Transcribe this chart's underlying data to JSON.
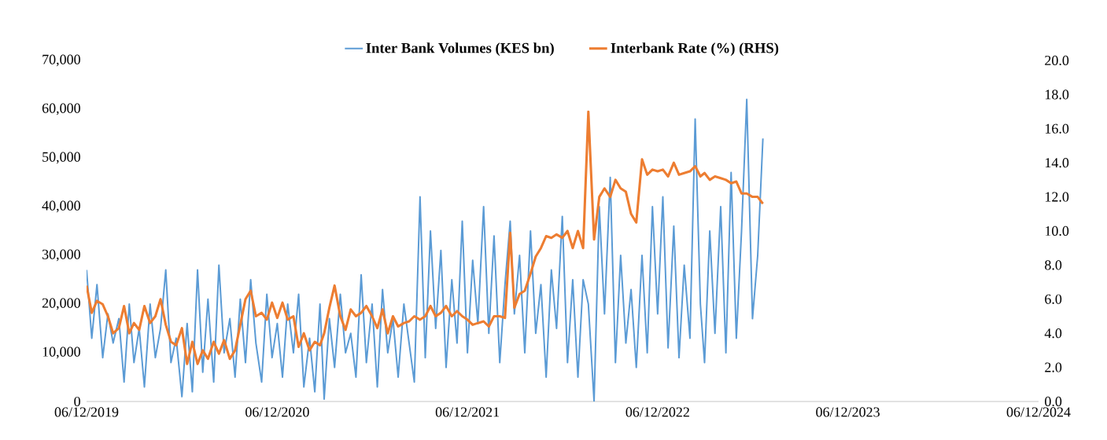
{
  "chart_data": {
    "type": "line",
    "x": [
      "2019-12-06",
      "2019-12-16",
      "2019-12-26",
      "2020-01-06",
      "2020-01-16",
      "2020-01-26",
      "2020-02-06",
      "2020-02-16",
      "2020-02-26",
      "2020-03-06",
      "2020-03-16",
      "2020-03-26",
      "2020-04-06",
      "2020-04-16",
      "2020-04-26",
      "2020-05-06",
      "2020-05-16",
      "2020-05-26",
      "2020-06-06",
      "2020-06-16",
      "2020-06-26",
      "2020-07-06",
      "2020-07-16",
      "2020-07-26",
      "2020-08-06",
      "2020-08-16",
      "2020-08-26",
      "2020-09-06",
      "2020-09-16",
      "2020-09-26",
      "2020-10-06",
      "2020-10-16",
      "2020-10-26",
      "2020-11-06",
      "2020-11-16",
      "2020-11-26",
      "2020-12-06",
      "2020-12-16",
      "2020-12-26",
      "2021-01-06",
      "2021-01-16",
      "2021-01-26",
      "2021-02-06",
      "2021-02-16",
      "2021-02-26",
      "2021-03-06",
      "2021-03-16",
      "2021-03-26",
      "2021-04-06",
      "2021-04-16",
      "2021-04-26",
      "2021-05-06",
      "2021-05-16",
      "2021-05-26",
      "2021-06-06",
      "2021-06-16",
      "2021-06-26",
      "2021-07-06",
      "2021-07-16",
      "2021-07-26",
      "2021-08-06",
      "2021-08-16",
      "2021-08-26",
      "2021-09-06",
      "2021-09-16",
      "2021-09-26",
      "2021-10-06",
      "2021-10-16",
      "2021-10-26",
      "2021-11-06",
      "2021-11-16",
      "2021-11-26",
      "2021-12-06",
      "2021-12-16",
      "2021-12-26",
      "2022-01-06",
      "2022-01-16",
      "2022-01-26",
      "2022-02-06",
      "2022-02-16",
      "2022-02-26",
      "2022-03-06",
      "2022-03-16",
      "2022-03-26",
      "2022-04-06",
      "2022-04-16",
      "2022-04-26",
      "2022-05-06",
      "2022-05-16",
      "2022-05-26",
      "2022-06-06",
      "2022-06-16",
      "2022-06-26",
      "2022-07-06",
      "2022-07-16",
      "2022-07-26",
      "2022-08-06",
      "2022-08-16",
      "2022-08-26",
      "2022-09-06",
      "2022-09-16",
      "2022-09-26",
      "2022-10-06",
      "2022-10-16",
      "2022-10-26",
      "2022-11-06",
      "2022-11-16",
      "2022-11-26",
      "2022-12-06",
      "2022-12-16",
      "2022-12-26",
      "2023-01-06",
      "2023-01-16",
      "2023-01-26",
      "2023-02-06",
      "2023-02-16",
      "2023-02-26",
      "2023-03-06",
      "2023-03-16",
      "2023-03-26",
      "2023-04-06",
      "2023-04-16",
      "2023-04-26",
      "2023-05-06",
      "2023-05-16",
      "2023-05-26",
      "2023-06-06",
      "2023-06-16",
      "2023-06-26"
    ],
    "series": [
      {
        "name": "Inter Bank Volumes (KES bn)",
        "color": "#5b9bd5",
        "values": [
          27000,
          13000,
          24000,
          9000,
          18000,
          12000,
          17000,
          4000,
          20000,
          8000,
          15000,
          3000,
          20000,
          9000,
          15000,
          27000,
          8000,
          13000,
          1000,
          16000,
          2000,
          27000,
          6000,
          21000,
          4000,
          28000,
          10000,
          17000,
          5000,
          21000,
          8000,
          25000,
          12000,
          4000,
          22000,
          9000,
          16000,
          5000,
          20000,
          10000,
          22000,
          3000,
          13000,
          2000,
          20000,
          500,
          17000,
          7000,
          22000,
          10000,
          14000,
          5000,
          26000,
          8000,
          20000,
          3000,
          23000,
          10000,
          17000,
          5000,
          20000,
          12000,
          4000,
          42000,
          9000,
          35000,
          15000,
          31000,
          7000,
          25000,
          12000,
          37000,
          10000,
          29000,
          16000,
          40000,
          14000,
          34000,
          8000,
          24000,
          37000,
          18000,
          30000,
          10000,
          35000,
          14000,
          24000,
          5000,
          27000,
          15000,
          38000,
          8000,
          25000,
          5000,
          25000,
          20000,
          0,
          40000,
          18000,
          46000,
          8000,
          30000,
          12000,
          23000,
          7000,
          30000,
          10000,
          40000,
          18000,
          42000,
          11000,
          36000,
          9000,
          28000,
          13000,
          58000,
          20000,
          8000,
          35000,
          14000,
          40000,
          10000,
          47000,
          13000,
          35000,
          62000,
          17000,
          30000,
          54000
        ]
      },
      {
        "name": "Interbank Rate (%) (RHS)",
        "color": "#ed7d31",
        "axis": "y2",
        "values": [
          6.8,
          5.2,
          5.9,
          5.7,
          5.0,
          4.0,
          4.3,
          5.6,
          4.0,
          4.6,
          4.2,
          5.6,
          4.6,
          5.0,
          6.0,
          4.5,
          3.5,
          3.3,
          4.3,
          2.2,
          3.5,
          2.2,
          3.0,
          2.5,
          3.5,
          2.8,
          3.6,
          2.5,
          3.0,
          4.5,
          6.0,
          6.5,
          5.0,
          5.2,
          4.8,
          5.8,
          4.9,
          5.8,
          4.8,
          5.0,
          3.2,
          4.0,
          3.0,
          3.5,
          3.3,
          4.0,
          5.5,
          6.8,
          5.0,
          4.2,
          5.4,
          5.0,
          5.2,
          5.6,
          5.0,
          4.3,
          5.4,
          4.0,
          5.0,
          4.4,
          4.6,
          4.7,
          5.0,
          4.8,
          5.0,
          5.6,
          5.0,
          5.2,
          5.6,
          5.0,
          5.3,
          5.0,
          4.8,
          4.5,
          4.6,
          4.7,
          4.4,
          5.0,
          5.0,
          4.9,
          9.9,
          5.5,
          6.3,
          6.5,
          7.5,
          8.5,
          9.0,
          9.7,
          9.6,
          9.8,
          9.6,
          10.0,
          9.0,
          10.0,
          9.0,
          17.0,
          9.5,
          12.0,
          12.5,
          12.0,
          13.0,
          12.5,
          12.3,
          11.0,
          10.5,
          14.2,
          13.3,
          13.6,
          13.5,
          13.6,
          13.2,
          14.0,
          13.3,
          13.4,
          13.5,
          13.8,
          13.2,
          13.4,
          13.0,
          13.2,
          13.1,
          13.0,
          12.8,
          12.9,
          12.2,
          12.2,
          12.0,
          12.0,
          11.6
        ]
      }
    ],
    "xlim": [
      "2019-12-06",
      "2024-12-06"
    ],
    "xticks": [
      {
        "value": "2019-12-06",
        "label": "06/12/2019"
      },
      {
        "value": "2020-12-06",
        "label": "06/12/2020"
      },
      {
        "value": "2021-12-06",
        "label": "06/12/2021"
      },
      {
        "value": "2022-12-06",
        "label": "06/12/2022"
      },
      {
        "value": "2023-12-06",
        "label": "06/12/2023"
      },
      {
        "value": "2024-12-06",
        "label": "06/12/2024"
      }
    ],
    "ylim": [
      0,
      70000
    ],
    "yticks": [
      0,
      {
        "value": 10000,
        "label": "10,000"
      },
      {
        "value": 20000,
        "label": "20,000"
      },
      {
        "value": 30000,
        "label": "30,000"
      },
      {
        "value": 40000,
        "label": "40,000"
      },
      {
        "value": 50000,
        "label": "50,000"
      },
      {
        "value": 60000,
        "label": "60,000"
      },
      {
        "value": 70000,
        "label": "70,000"
      }
    ],
    "y2lim": [
      0,
      20
    ],
    "y2ticks": [
      {
        "value": 0,
        "label": "0.0"
      },
      {
        "value": 2,
        "label": "2.0"
      },
      {
        "value": 4,
        "label": "4.0"
      },
      {
        "value": 6,
        "label": "6.0"
      },
      {
        "value": 8,
        "label": "8.0"
      },
      {
        "value": 10,
        "label": "10.0"
      },
      {
        "value": 12,
        "label": "12.0"
      },
      {
        "value": 14,
        "label": "14.0"
      },
      {
        "value": 16,
        "label": "16.0"
      },
      {
        "value": 18,
        "label": "18.0"
      },
      {
        "value": 20,
        "label": "20.0"
      }
    ],
    "legend": "top",
    "marker": "none",
    "line_style": "solid"
  }
}
